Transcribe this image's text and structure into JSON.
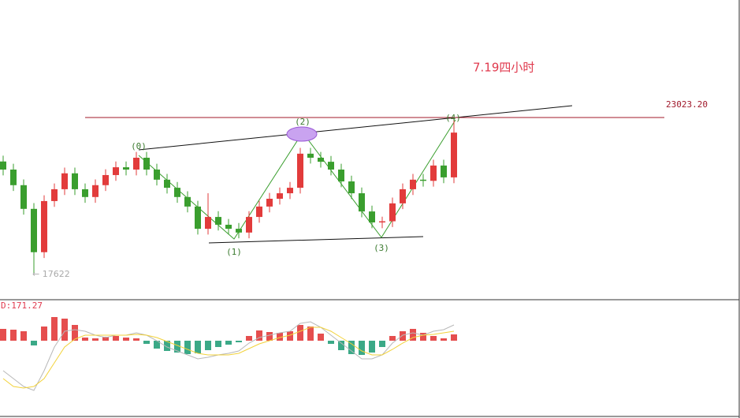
{
  "chart_data": [
    {
      "type": "candlestick",
      "title": "7.19四小时",
      "ylim": [
        16770,
        27090
      ],
      "open": [
        21500,
        21220,
        20680,
        19860,
        18360,
        20130,
        20540,
        21090,
        20540,
        20270,
        20680,
        21030,
        21300,
        21220,
        21630,
        21220,
        20870,
        20590,
        20270,
        19940,
        19170,
        19580,
        19310,
        19170,
        19040,
        19580,
        19940,
        20210,
        20400,
        20590,
        21770,
        21630,
        21490,
        21220,
        20810,
        20400,
        19770,
        19390,
        19430,
        20050,
        20540,
        20870,
        20830,
        21360,
        20950
      ],
      "high": [
        21700,
        21420,
        20880,
        20060,
        20330,
        20740,
        21290,
        21290,
        20740,
        20880,
        21230,
        21500,
        21500,
        21830,
        21830,
        21420,
        21070,
        20790,
        20470,
        20140,
        20400,
        19780,
        19510,
        19370,
        19780,
        20140,
        20410,
        20600,
        20790,
        21970,
        21970,
        21830,
        21690,
        21420,
        21010,
        20600,
        19970,
        19590,
        20250,
        20740,
        21070,
        21070,
        21560,
        21560,
        22950
      ],
      "low": [
        21020,
        20480,
        19660,
        17622,
        18160,
        19930,
        20340,
        20340,
        20070,
        20070,
        20480,
        20830,
        21020,
        21020,
        21020,
        20670,
        20390,
        20070,
        19740,
        18970,
        18970,
        19110,
        18970,
        18840,
        18840,
        19380,
        19740,
        20010,
        20200,
        20390,
        21430,
        21290,
        21020,
        20610,
        20200,
        19570,
        19190,
        19190,
        19230,
        19850,
        20340,
        20630,
        20630,
        20750,
        20750
      ],
      "close": [
        21220,
        20680,
        19860,
        18360,
        20130,
        20540,
        21090,
        20540,
        20270,
        20680,
        21030,
        21300,
        21220,
        21630,
        21220,
        20870,
        20590,
        20270,
        19940,
        19170,
        19580,
        19310,
        19170,
        19040,
        19580,
        19940,
        20210,
        20400,
        20590,
        21770,
        21630,
        21490,
        21220,
        20810,
        20400,
        19770,
        19390,
        19430,
        20050,
        20540,
        20870,
        20830,
        21360,
        20950,
        22500
      ],
      "up_color": "#e23b3b",
      "down_color": "#3a9e2e",
      "price_line": {
        "value": 23023.2,
        "label": "23023.20"
      },
      "low_label": {
        "value": 17622,
        "label": "← 17622"
      },
      "wave_labels": [
        "(0)",
        "(1)",
        "(2)",
        "(3)",
        "(4)"
      ]
    },
    {
      "type": "macd",
      "title": "D:171.27",
      "ylim": [
        -980,
        510
      ],
      "histogram": [
        150,
        140,
        120,
        -60,
        180,
        300,
        280,
        200,
        40,
        30,
        50,
        60,
        40,
        30,
        -40,
        -100,
        -130,
        -150,
        -170,
        -160,
        -120,
        -80,
        -50,
        -20,
        60,
        130,
        110,
        100,
        120,
        200,
        180,
        90,
        -40,
        -120,
        -170,
        -180,
        -150,
        -80,
        60,
        120,
        150,
        100,
        60,
        30,
        80
      ],
      "dif": [
        -380,
        -480,
        -580,
        -630,
        -380,
        -80,
        120,
        140,
        120,
        70,
        40,
        70,
        70,
        100,
        70,
        0,
        -80,
        -130,
        -180,
        -230,
        -210,
        -180,
        -160,
        -130,
        -30,
        40,
        70,
        100,
        120,
        220,
        240,
        170,
        70,
        -30,
        -130,
        -230,
        -230,
        -180,
        -30,
        70,
        100,
        70,
        120,
        140,
        200
      ],
      "dea": [
        -480,
        -580,
        -600,
        -580,
        -480,
        -280,
        -80,
        20,
        70,
        70,
        70,
        70,
        70,
        80,
        70,
        40,
        -10,
        -60,
        -110,
        -160,
        -180,
        -180,
        -180,
        -160,
        -100,
        -40,
        0,
        40,
        70,
        120,
        170,
        170,
        120,
        40,
        -40,
        -130,
        -180,
        -180,
        -110,
        -30,
        40,
        70,
        80,
        100,
        120
      ],
      "colors": {
        "positive": "#e23b3b",
        "negative": "#26a07a",
        "dif": "#b8b8b8",
        "dea": "#f2d23a"
      }
    }
  ]
}
